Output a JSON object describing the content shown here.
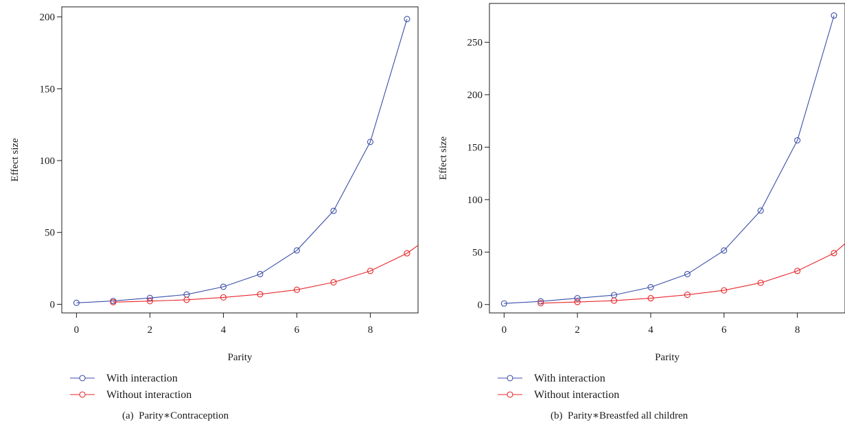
{
  "chart_data": [
    {
      "type": "line",
      "caption": "(a)  Parity∗Contraception",
      "xlabel": "Parity",
      "ylabel": "Effect size",
      "xlim": [
        -0.4,
        9.3
      ],
      "ylim": [
        -6,
        207
      ],
      "xticks": [
        0,
        2,
        4,
        6,
        8
      ],
      "yticks": [
        0,
        50,
        100,
        150,
        200
      ],
      "legend_position": "below",
      "series": [
        {
          "name": "With interaction",
          "color": "#3a4ea8",
          "markers": true,
          "x": [
            0,
            1,
            2,
            3,
            4,
            5,
            6,
            7,
            8,
            9
          ],
          "y": [
            1,
            2.3,
            4.4,
            6.8,
            12.2,
            21,
            37.5,
            65,
            113,
            198.5
          ]
        },
        {
          "name": "Without interaction",
          "color": "#e8262a",
          "markers": true,
          "x": [
            1,
            2,
            3,
            4,
            5,
            6,
            7,
            8,
            9
          ],
          "y": [
            1.5,
            2.2,
            3.1,
            4.8,
            7.0,
            10.1,
            15.3,
            23.2,
            35.5
          ],
          "extend_to_x": 9.3,
          "extend_to_y": 41
        }
      ]
    },
    {
      "type": "line",
      "caption": "(b)  Parity∗Breastfed all children",
      "xlabel": "Parity",
      "ylabel": "Effect size",
      "xlim": [
        -0.4,
        9.3
      ],
      "ylim": [
        -8,
        287
      ],
      "xticks": [
        0,
        2,
        4,
        6,
        8
      ],
      "yticks": [
        0,
        50,
        100,
        150,
        200,
        250
      ],
      "legend_position": "below",
      "series": [
        {
          "name": "With interaction",
          "color": "#3a4ea8",
          "markers": true,
          "x": [
            0,
            1,
            2,
            3,
            4,
            5,
            6,
            7,
            8,
            9
          ],
          "y": [
            1,
            3,
            6,
            9,
            16.5,
            29,
            51.5,
            89.5,
            156.5,
            275.5
          ]
        },
        {
          "name": "Without interaction",
          "color": "#e8262a",
          "markers": true,
          "x": [
            1,
            2,
            3,
            4,
            5,
            6,
            7,
            8,
            9
          ],
          "y": [
            1.3,
            2.4,
            3.7,
            6.0,
            9.3,
            13.5,
            20.7,
            32,
            49
          ],
          "extend_to_x": 9.3,
          "extend_to_y": 58
        }
      ]
    }
  ]
}
